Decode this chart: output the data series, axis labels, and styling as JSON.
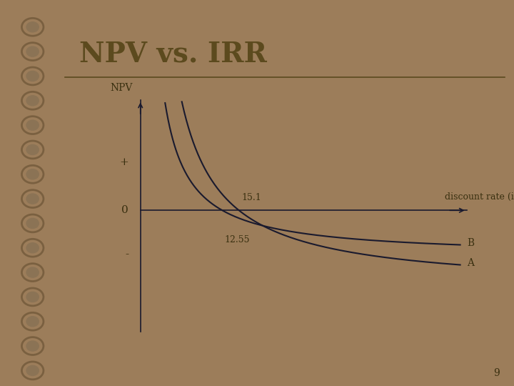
{
  "title": "NPV vs. IRR",
  "title_fontsize": 28,
  "title_color": "#5C4A1E",
  "bg_color": "#F5F0DC",
  "outer_bg": "#9C7D5A",
  "line_color": "#1a1a2e",
  "axis_label_npv": "NPV",
  "axis_label_discount": "discount rate (i)",
  "label_plus": "+",
  "label_zero": "0",
  "label_minus": "-",
  "label_irr_a": "15.1",
  "label_irr_b": "12.55",
  "curve_a_label": "A",
  "curve_b_label": "B",
  "irr_a": 0.151,
  "irr_b": 0.1255,
  "font_color": "#3a3010",
  "page_number": "9",
  "spiral_color_outer": "#7a6040",
  "spiral_color_inner": "#8B7355"
}
